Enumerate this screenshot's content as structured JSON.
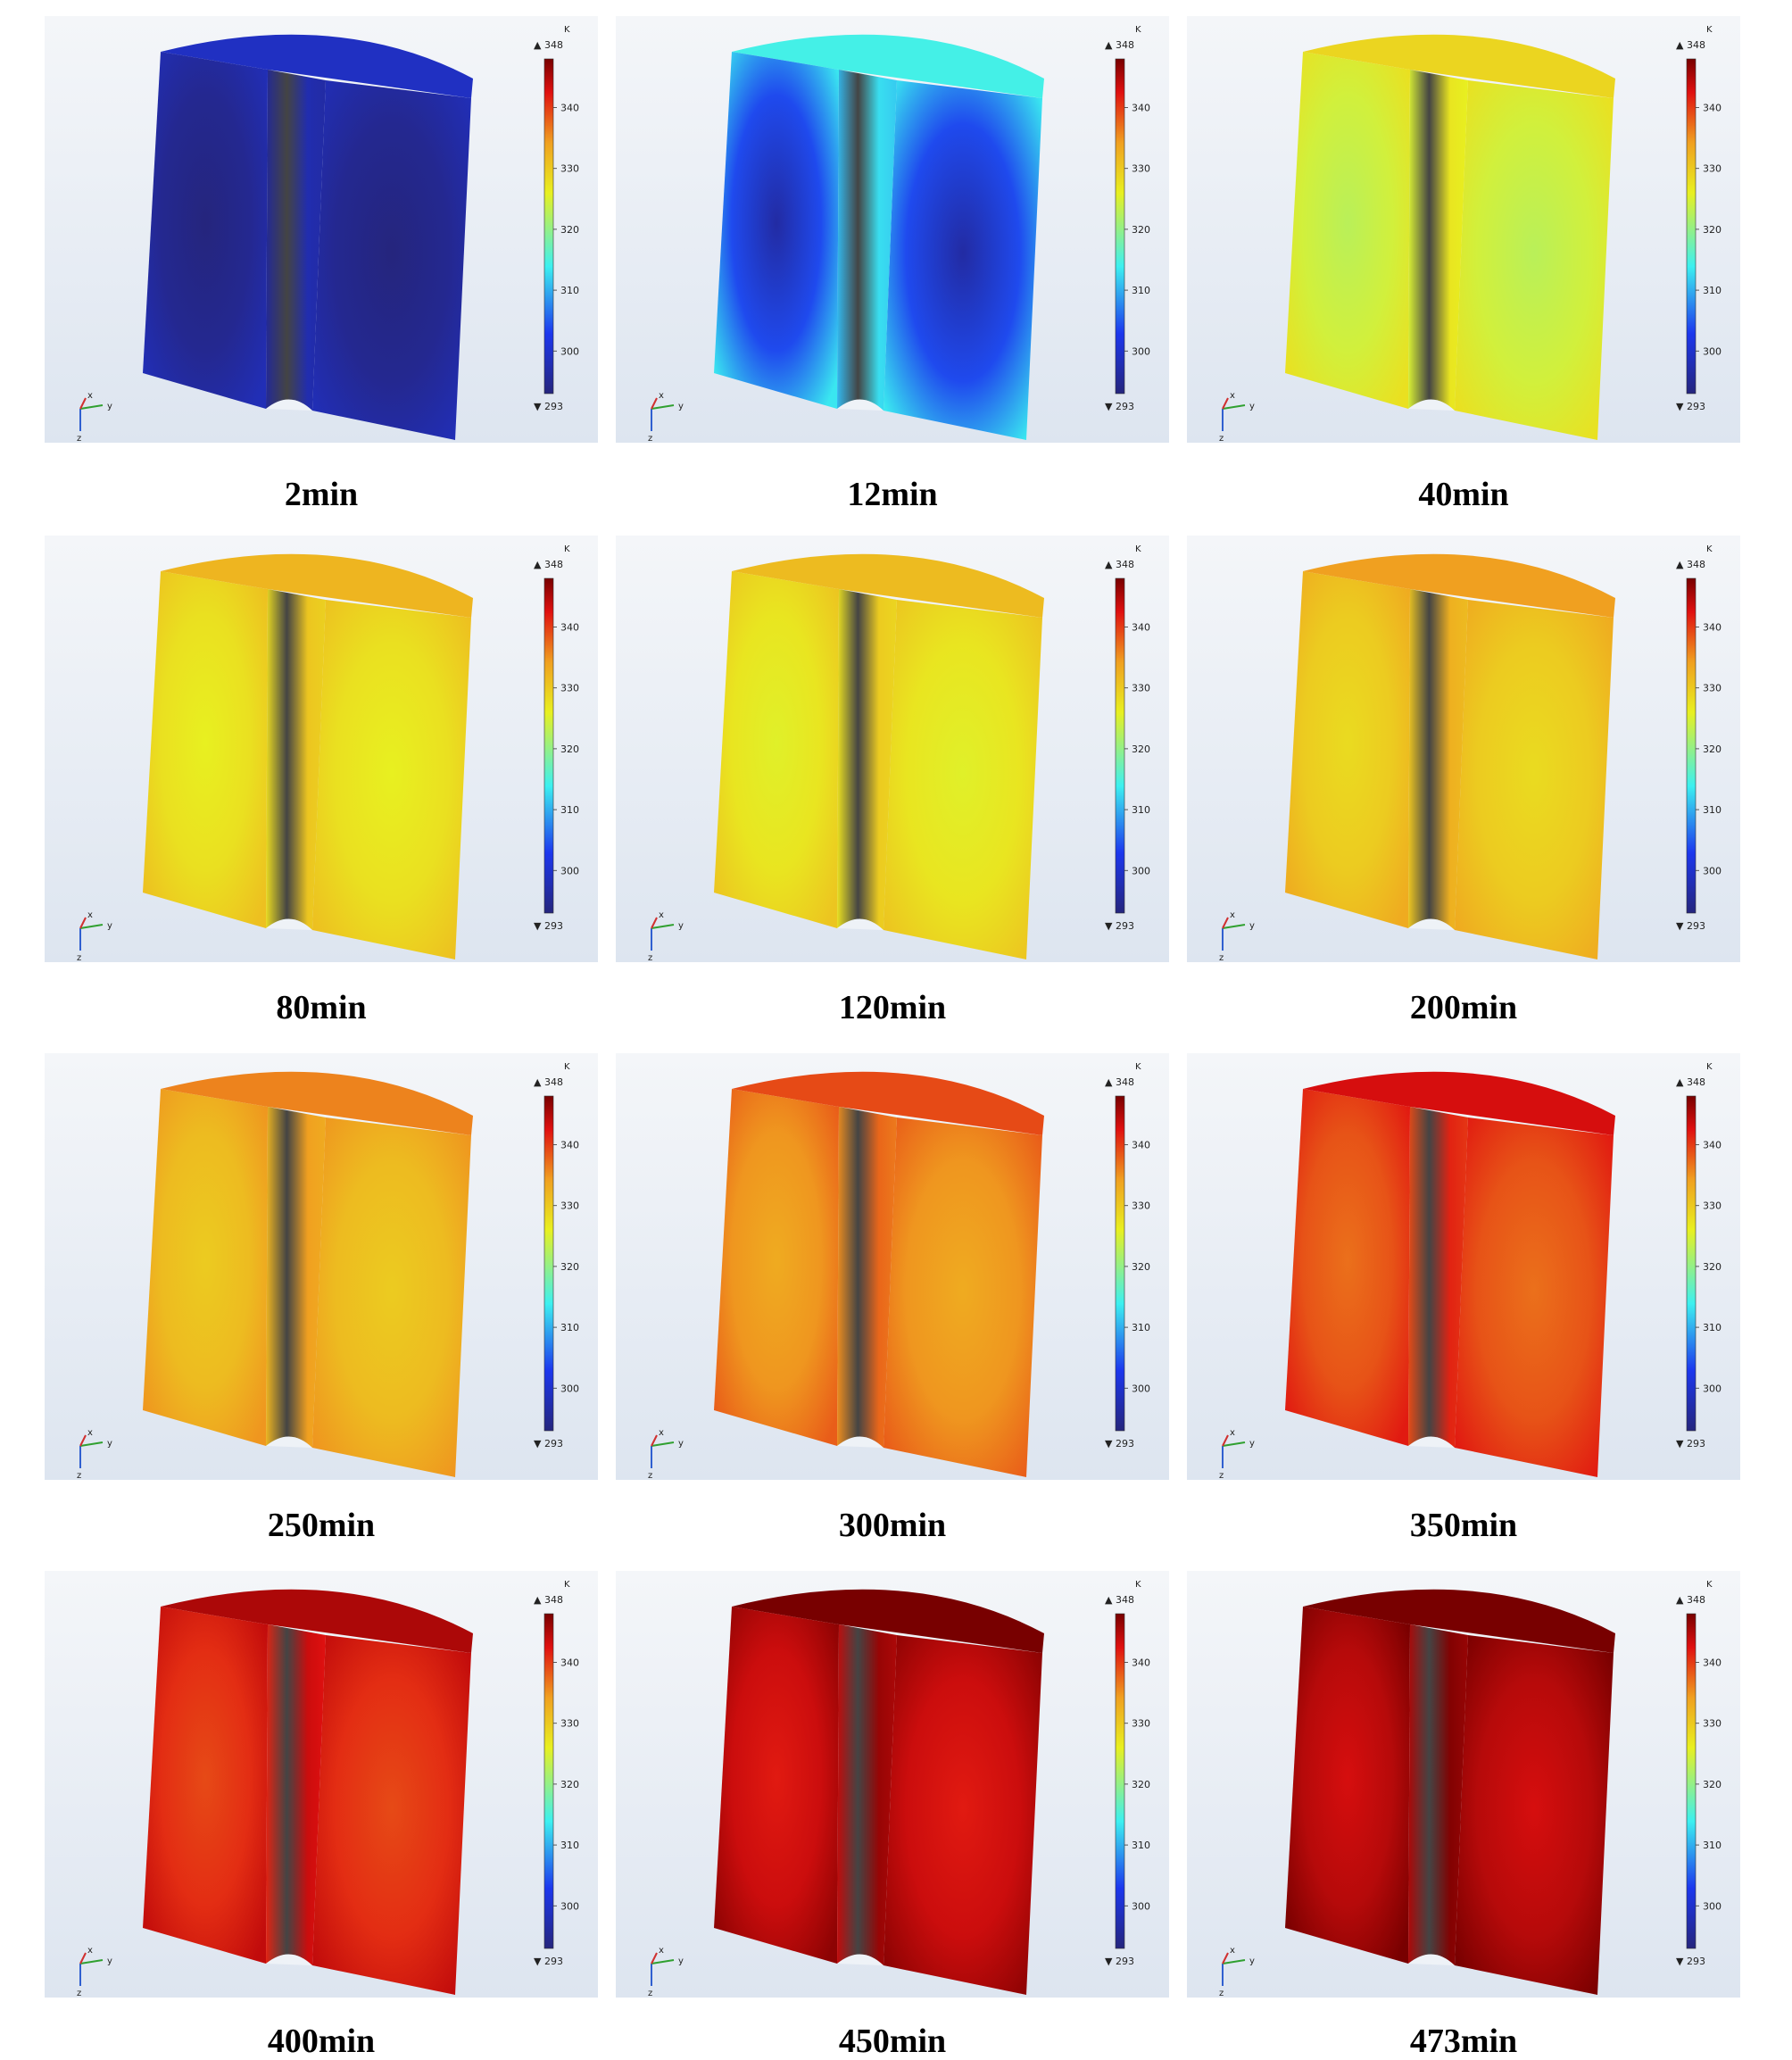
{
  "panels": [
    {
      "time": "2min",
      "frac": 0.06
    },
    {
      "time": "12min",
      "frac": 0.34
    },
    {
      "time": "40min",
      "frac": 0.6
    },
    {
      "time": "80min",
      "frac": 0.66
    },
    {
      "time": "120min",
      "frac": 0.65
    },
    {
      "time": "200min",
      "frac": 0.7
    },
    {
      "time": "250min",
      "frac": 0.73
    },
    {
      "time": "300min",
      "frac": 0.79
    },
    {
      "time": "350min",
      "frac": 0.86
    },
    {
      "time": "400min",
      "frac": 0.9
    },
    {
      "time": "450min",
      "frac": 0.95
    },
    {
      "time": "473min",
      "frac": 0.97
    }
  ],
  "colorbar": {
    "unit": "K",
    "max": "348",
    "min": "293",
    "ticks": [
      "340",
      "330",
      "320",
      "310",
      "300"
    ]
  },
  "axes": {
    "x": "x",
    "y": "y",
    "z": "z"
  },
  "colors": {
    "background_top": "#f4f6f9",
    "background_bottom": "#dde5f0",
    "palette": [
      "#25257d",
      "#1c37ee",
      "#3cf0f0",
      "#e8f020",
      "#f0a020",
      "#e01010",
      "#780000"
    ]
  }
}
